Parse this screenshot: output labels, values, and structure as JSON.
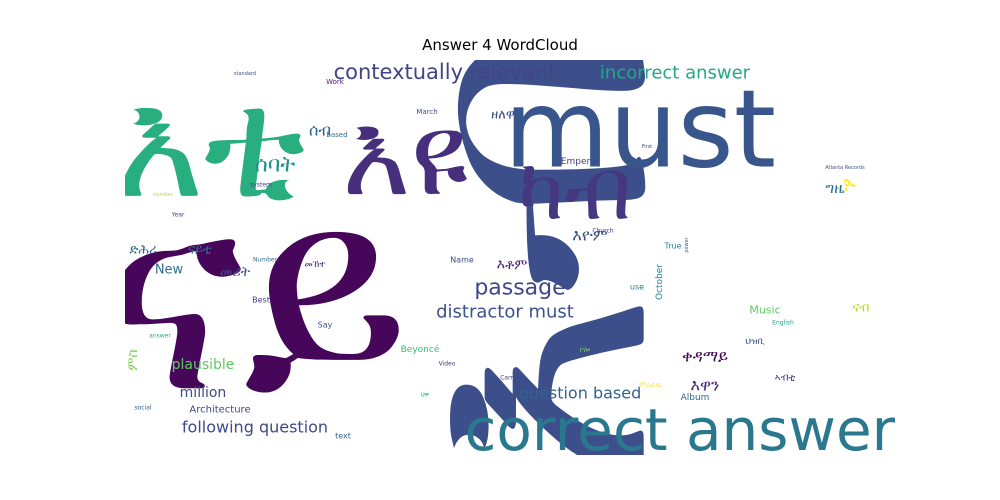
{
  "chart_data": {
    "type": "wordcloud",
    "title": "Answer 4 WordCloud",
    "colormap": "viridis",
    "background": "#ffffff",
    "words": [
      {
        "text": "ናይ",
        "weight": 1.0,
        "color": "#46075a"
      },
      {
        "text": "እብ",
        "weight": 0.96,
        "color": "#3d4f8a"
      },
      {
        "text": "must",
        "weight": 0.85,
        "color": "#39568c"
      },
      {
        "text": "እቲ",
        "weight": 0.78,
        "color": "#29af7f"
      },
      {
        "text": "correct answer",
        "weight": 0.62,
        "color": "#2a788e"
      },
      {
        "text": "እዩ",
        "weight": 0.56,
        "color": "#472f7d"
      },
      {
        "text": "ካብ",
        "weight": 0.42,
        "color": "#453781"
      },
      {
        "text": "contextually relevant",
        "weight": 0.22,
        "color": "#414487"
      },
      {
        "text": "incorrect answer",
        "weight": 0.19,
        "color": "#22a884"
      },
      {
        "text": "passage",
        "weight": 0.2,
        "color": "#404688"
      },
      {
        "text": "distractor must",
        "weight": 0.18,
        "color": "#3b528b"
      },
      {
        "text": "question based",
        "weight": 0.14,
        "color": "#33638d"
      },
      {
        "text": "following question",
        "weight": 0.14,
        "color": "#3e4a89"
      },
      {
        "text": "ሰባት",
        "weight": 0.18,
        "color": "#21918c"
      },
      {
        "text": "ሰብ",
        "weight": 0.12,
        "color": "#31688e"
      },
      {
        "text": "million",
        "weight": 0.12,
        "color": "#3e4989"
      },
      {
        "text": "plausible",
        "weight": 0.12,
        "color": "#5ec962"
      },
      {
        "text": "ቀዳማይ",
        "weight": 0.12,
        "color": "#440154"
      },
      {
        "text": "እዋን",
        "weight": 0.12,
        "color": "#482677"
      },
      {
        "text": "እዮም",
        "weight": 0.12,
        "color": "#3b528b"
      },
      {
        "text": "እቶም",
        "weight": 0.11,
        "color": "#482878"
      },
      {
        "text": "ናይቲ",
        "weight": 0.1,
        "color": "#31688e"
      },
      {
        "text": "ዘለዋ",
        "weight": 0.1,
        "color": "#3e4a89"
      },
      {
        "text": "ግዜ",
        "weight": 0.1,
        "color": "#2c728e"
      },
      {
        "text": "ፈ",
        "weight": 0.1,
        "color": "#fde725"
      },
      {
        "text": "ምስ",
        "weight": 0.09,
        "color": "#7ad151"
      },
      {
        "text": "ናብ",
        "weight": 0.09,
        "color": "#b5de2b"
      },
      {
        "text": "መሪት",
        "weight": 0.09,
        "color": "#3b528b"
      },
      {
        "text": "New",
        "weight": 0.09,
        "color": "#2c728e"
      },
      {
        "text": "ድሕሪ",
        "weight": 0.08,
        "color": "#32648e"
      },
      {
        "text": "Music",
        "weight": 0.07,
        "color": "#5ec962"
      },
      {
        "text": "Architecture",
        "weight": 0.05,
        "color": "#404688"
      },
      {
        "text": "October",
        "weight": 0.05,
        "color": "#25858e"
      },
      {
        "text": "Emperor",
        "weight": 0.05,
        "color": "#414487"
      },
      {
        "text": "Album",
        "weight": 0.05,
        "color": "#31688e"
      },
      {
        "text": "Beyoncé",
        "weight": 0.05,
        "color": "#3fbc73"
      },
      {
        "text": "Name",
        "weight": 0.045,
        "color": "#3e4a89"
      },
      {
        "text": "Best",
        "weight": 0.04,
        "color": "#443983"
      },
      {
        "text": "True",
        "weight": 0.04,
        "color": "#25858e"
      },
      {
        "text": "text",
        "weight": 0.04,
        "color": "#33638d"
      },
      {
        "text": "Say",
        "weight": 0.04,
        "color": "#3b528b"
      },
      {
        "text": "use",
        "weight": 0.04,
        "color": "#2a788e"
      },
      {
        "text": "based",
        "weight": 0.035,
        "color": "#306a8e"
      },
      {
        "text": "March",
        "weight": 0.035,
        "color": "#3e4a89"
      },
      {
        "text": "Work",
        "weight": 0.035,
        "color": "#482475"
      },
      {
        "text": "system",
        "weight": 0.035,
        "color": "#424086"
      },
      {
        "text": "Year",
        "weight": 0.035,
        "color": "#3e4989"
      },
      {
        "text": "Church",
        "weight": 0.035,
        "color": "#46337f"
      },
      {
        "text": "Video",
        "weight": 0.03,
        "color": "#443983"
      },
      {
        "text": "Carmen",
        "weight": 0.03,
        "color": "#3f4788"
      },
      {
        "text": "Number",
        "weight": 0.03,
        "color": "#2c728e"
      },
      {
        "text": "English",
        "weight": 0.03,
        "color": "#20a386"
      },
      {
        "text": "Atlanta Records",
        "weight": 0.03,
        "color": "#3b528b"
      },
      {
        "text": "standard",
        "weight": 0.03,
        "color": "#3b528b"
      },
      {
        "text": "First",
        "weight": 0.03,
        "color": "#3b528b"
      },
      {
        "text": "answer",
        "weight": 0.03,
        "color": "#29af7f"
      },
      {
        "text": "social",
        "weight": 0.03,
        "color": "#33638d"
      },
      {
        "text": "number",
        "weight": 0.03,
        "color": "#b5de2b"
      },
      {
        "text": "power",
        "weight": 0.03,
        "color": "#31688e"
      },
      {
        "text": "ህዝቢ",
        "weight": 0.07,
        "color": "#3b528b"
      },
      {
        "text": "ኣብቲ",
        "weight": 0.07,
        "color": "#472f7d"
      },
      {
        "text": "መኸተ",
        "weight": 0.06,
        "color": "#482878"
      },
      {
        "text": "ምዕራፍ",
        "weight": 0.06,
        "color": "#fde725"
      },
      {
        "text": "ኮሎ",
        "weight": 0.05,
        "color": "#6ece58"
      },
      {
        "text": "ህዋ",
        "weight": 0.04,
        "color": "#20a386"
      }
    ]
  }
}
